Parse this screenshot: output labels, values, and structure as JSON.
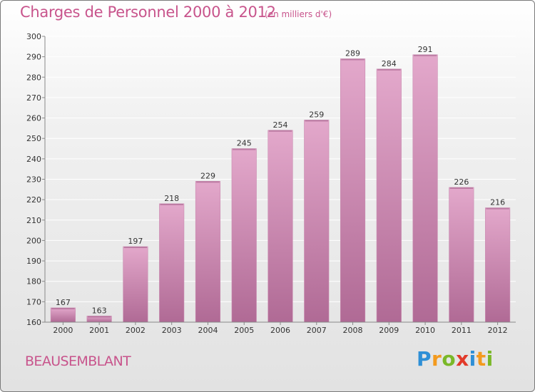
{
  "title": "Charges de Personnel 2000 à 2012",
  "subtitle": "(en milliers d'€)",
  "commune": "BEAUSEMBLANT",
  "logo": {
    "text": "Proxiti",
    "letters": [
      {
        "ch": "P",
        "color": "#2e8fd6"
      },
      {
        "ch": "r",
        "color": "#f39a1e"
      },
      {
        "ch": "o",
        "color": "#7ab828"
      },
      {
        "ch": "x",
        "color": "#e23a2a"
      },
      {
        "ch": "i",
        "color": "#2e8fd6"
      },
      {
        "ch": "t",
        "color": "#f39a1e"
      },
      {
        "ch": "i",
        "color": "#7ab828"
      }
    ]
  },
  "colors": {
    "bar_top": "#e3a8cb",
    "bar_bottom": "#b06a95",
    "text_accent": "#c8548c",
    "grid": "#ffffff"
  },
  "chart_data": {
    "type": "bar",
    "categories": [
      "2000",
      "2001",
      "2002",
      "2003",
      "2004",
      "2005",
      "2006",
      "2007",
      "2008",
      "2009",
      "2010",
      "2011",
      "2012"
    ],
    "values": [
      167,
      163,
      197,
      218,
      229,
      245,
      254,
      259,
      289,
      284,
      291,
      226,
      216
    ],
    "ylim": [
      160,
      300
    ],
    "yticks": [
      160,
      170,
      180,
      190,
      200,
      210,
      220,
      230,
      240,
      250,
      260,
      270,
      280,
      290,
      300
    ],
    "grid": true,
    "data_labels": true
  }
}
